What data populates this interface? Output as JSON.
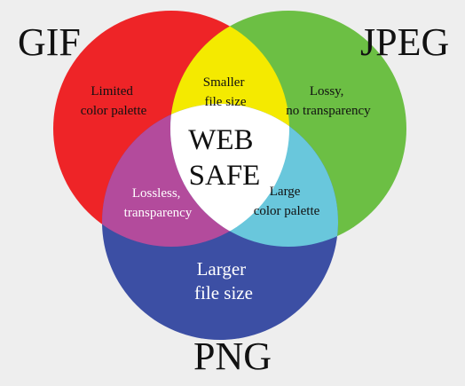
{
  "sets": [
    {
      "name": "GIF",
      "color": "#ee2427"
    },
    {
      "name": "JPEG",
      "color": "#6cbf44"
    },
    {
      "name": "PNG",
      "color": "#3c4fa4"
    }
  ],
  "overlap_colors": {
    "gif_jpeg": "#f4ea00",
    "gif_png": "#b34b9c",
    "jpeg_png": "#69c7dc",
    "all": "#ffffff"
  },
  "regions": {
    "gif_only": [
      "Limited",
      "color palette"
    ],
    "jpeg_only": [
      "Lossy,",
      "no transparency"
    ],
    "png_only": [
      "Larger",
      "file size"
    ],
    "gif_jpeg": [
      "Smaller",
      "file size"
    ],
    "gif_png": [
      "Lossless,",
      "transparency"
    ],
    "jpeg_png": [
      "Large",
      "color palette"
    ],
    "center": [
      "WEB",
      "SAFE"
    ]
  }
}
